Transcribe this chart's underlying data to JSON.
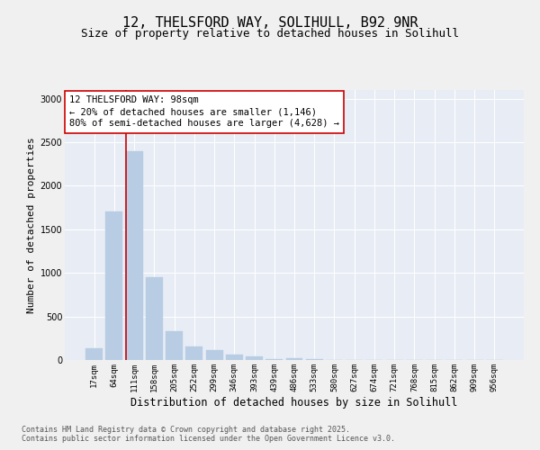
{
  "title_line1": "12, THELSFORD WAY, SOLIHULL, B92 9NR",
  "title_line2": "Size of property relative to detached houses in Solihull",
  "xlabel": "Distribution of detached houses by size in Solihull",
  "ylabel": "Number of detached properties",
  "categories": [
    "17sqm",
    "64sqm",
    "111sqm",
    "158sqm",
    "205sqm",
    "252sqm",
    "299sqm",
    "346sqm",
    "393sqm",
    "439sqm",
    "486sqm",
    "533sqm",
    "580sqm",
    "627sqm",
    "674sqm",
    "721sqm",
    "768sqm",
    "815sqm",
    "862sqm",
    "909sqm",
    "956sqm"
  ],
  "values": [
    130,
    1700,
    2400,
    950,
    330,
    160,
    110,
    60,
    40,
    15,
    20,
    8,
    3,
    0,
    0,
    0,
    0,
    0,
    0,
    0,
    0
  ],
  "bar_color": "#b8cce4",
  "bar_edgecolor": "#b8cce4",
  "vline_x_index": 1.6,
  "vline_color": "#cc0000",
  "annotation_title": "12 THELSFORD WAY: 98sqm",
  "annotation_line2": "← 20% of detached houses are smaller (1,146)",
  "annotation_line3": "80% of semi-detached houses are larger (4,628) →",
  "annotation_box_edgecolor": "#cc0000",
  "annotation_box_facecolor": "#ffffff",
  "ylim": [
    0,
    3100
  ],
  "yticks": [
    0,
    500,
    1000,
    1500,
    2000,
    2500,
    3000
  ],
  "background_color": "#e8edf5",
  "plot_bg_color": "#e8edf5",
  "fig_bg_color": "#f0f0f0",
  "footer_line1": "Contains HM Land Registry data © Crown copyright and database right 2025.",
  "footer_line2": "Contains public sector information licensed under the Open Government Licence v3.0.",
  "title_fontsize": 11,
  "subtitle_fontsize": 9,
  "axis_label_fontsize": 8,
  "tick_fontsize": 6.5,
  "annotation_fontsize": 7.5,
  "footer_fontsize": 6
}
